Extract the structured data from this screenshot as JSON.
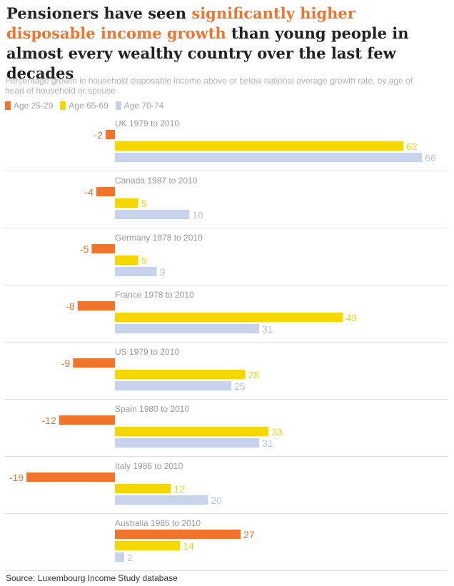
{
  "header": {
    "title_part1": "Pensioners have seen ",
    "title_highlight": "significantly higher disposable income growth",
    "title_part2": " than young people in almost every wealthy country over the last few decades",
    "subtitle": "Percentage growth in household disposable income above or below national average growth rate, by age of head of household or spouse"
  },
  "source": "Source: Luxembourg Income Study database",
  "colors": {
    "accent": "#f0742c",
    "age_25_29": "#f0742c",
    "age_65_69": "#f5d700",
    "age_70_74": "#c6d3ea",
    "label_age_70_74": "#b7c5df"
  },
  "chart_data": {
    "type": "bar",
    "orientation": "horizontal",
    "xlim": [
      -19,
      66
    ],
    "grid": false,
    "legend_position": "top-left",
    "groups": [
      "UK 1979 to 2010",
      "Canada 1987 to 2010",
      "Germany 1978 to 2010",
      "France 1978 to 2010",
      "US 1979 to 2010",
      "Spain 1980 to 2010",
      "Italy 1986 to 2010",
      "Australia 1985 to 2010"
    ],
    "series": [
      {
        "name": "Age 25-29",
        "values": [
          -2,
          -4,
          -5,
          -8,
          -9,
          -12,
          -19,
          27
        ]
      },
      {
        "name": "Age 65-69",
        "values": [
          62,
          5,
          5,
          49,
          28,
          33,
          12,
          14
        ]
      },
      {
        "name": "Age 70-74",
        "values": [
          66,
          16,
          9,
          31,
          25,
          31,
          20,
          2
        ]
      }
    ]
  }
}
